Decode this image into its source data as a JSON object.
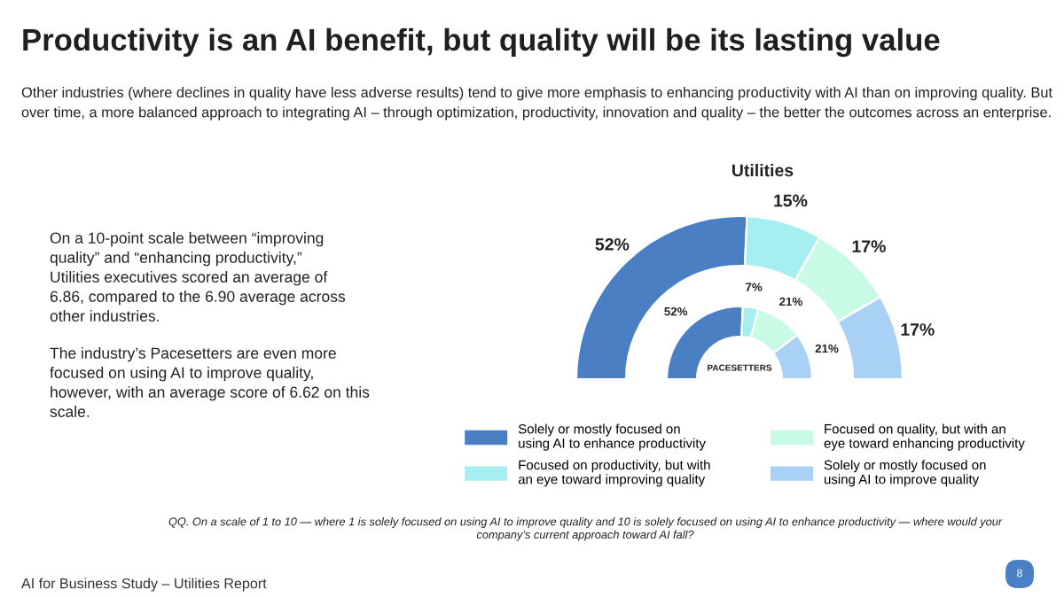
{
  "chart_data": [
    {
      "type": "other",
      "title": "Productivity is an AI benefit, but quality will be its lasting value",
      "subtitle": "Other industries (where declines in quality have less adverse results) tend to give more emphasis to enhancing productivity with AI than on improving quality. But over time, a more balanced approach to integrating AI – through optimization, productivity, innovation and quality – the better the outcomes across an enterprise.",
      "annotations": [
        "On a 10-point scale between “improving quality” and “enhancing productivity,” Utilities executives scored an average of 6.86, compared to the 6.90 average across other industries.",
        "The industry’s Pacesetters are even more focused on using AI to improve quality, however, with an average score of 6.62 on this scale.",
        "QQ. On a scale of 1 to 10 — where 1 is solely focused on using AI to improve quality and 10 is solely focused on using AI to enhance productivity — where would your company’s current approach toward AI fall?",
        "AI for Business Study – Utilities Report",
        "8"
      ]
    },
    {
      "type": "donut",
      "title": "Utilities",
      "categories": [
        "Solely or mostly focused on using AI to enhance productivity",
        "Focused on productivity, but with an eye toward improving quality",
        "Focused on quality, but with an eye toward enhancing productivity",
        "Solely or mostly focused on using AI to improve quality"
      ],
      "colors": [
        "#4a7fc4",
        "#a6eef0",
        "#c9fae6",
        "#a9d1f5"
      ],
      "legend": "bottom",
      "series": [
        {
          "values": [
            52,
            15,
            17,
            17
          ],
          "value_labels": [
            "52%",
            "15%",
            "17%",
            "17%"
          ]
        },
        {
          "name": "PACESETTERS",
          "values": [
            52,
            7,
            21,
            21
          ],
          "value_labels": [
            "52%",
            "7%",
            "21%",
            "21%"
          ]
        }
      ]
    }
  ]
}
